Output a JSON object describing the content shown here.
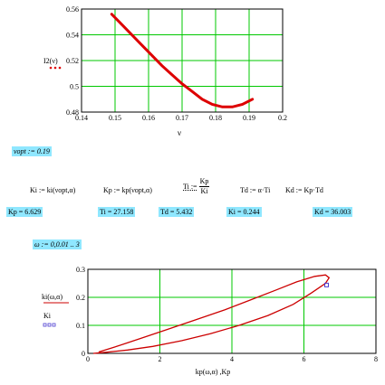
{
  "top_plot": {
    "y_axis_label": "I2(ν)",
    "x_axis_label": "ν",
    "y_ticks": [
      "0.56",
      "0.54",
      "0.52",
      "0.5",
      "0.48"
    ],
    "x_ticks": [
      "0.14",
      "0.15",
      "0.16",
      "0.17",
      "0.18",
      "0.19",
      "0.2"
    ]
  },
  "nu_opt": "νopt := 0.19",
  "definitions": {
    "ki": "Ki := ki(νopt,α)",
    "kp": "Kp := kp(νopt,α)",
    "ti_lhs": "Ti :=",
    "ti_num": "Kp",
    "ti_den": "Ki",
    "td": "Td := α·Ti",
    "kd": "Kd := Kp·Td"
  },
  "results": {
    "kp": "Kp = 6.629",
    "ti": "Ti = 27.158",
    "td": "Td = 5.432",
    "ki": "Ki = 0.244",
    "kd": "Kd = 36.003"
  },
  "omega_range": "ω := 0,0.01 .. 3",
  "bottom_plot": {
    "y_axis_label": "ki(ω,α)",
    "y_axis_label2": "Ki",
    "x_axis_label": "kp(ω,α) ,Kp",
    "y_ticks": [
      "0.3",
      "0.2",
      "0.1",
      "0"
    ],
    "x_ticks": [
      "0",
      "2",
      "4",
      "6",
      "8"
    ]
  },
  "chart_data": [
    {
      "type": "line",
      "title": "",
      "xlabel": "ν",
      "ylabel": "I2(ν)",
      "xlim": [
        0.14,
        0.2
      ],
      "ylim": [
        0.48,
        0.56
      ],
      "grid": true,
      "series": [
        {
          "x": [
            0.149,
            0.152,
            0.155,
            0.158,
            0.161,
            0.164,
            0.167,
            0.17,
            0.173,
            0.176,
            0.179,
            0.182,
            0.185,
            0.188,
            0.191
          ],
          "y": [
            0.556,
            0.548,
            0.54,
            0.532,
            0.524,
            0.516,
            0.509,
            0.502,
            0.496,
            0.49,
            0.486,
            0.484,
            0.484,
            0.486,
            0.49
          ]
        }
      ]
    },
    {
      "type": "line",
      "title": "",
      "xlabel": "kp(ω,α) ,Kp",
      "ylabel": "ki(ω,α)",
      "xlim": [
        0,
        8
      ],
      "ylim": [
        0,
        0.3
      ],
      "grid": true,
      "series": [
        {
          "x": [
            0.3,
            0.8,
            1.5,
            2.2,
            3.0,
            3.8,
            4.5,
            5.2,
            5.8,
            6.3,
            6.6,
            6.7,
            6.6,
            6.2,
            5.7,
            5.0,
            4.2,
            3.4,
            2.6,
            1.8,
            1.1,
            0.5,
            0.15
          ],
          "y": [
            0.005,
            0.025,
            0.055,
            0.085,
            0.12,
            0.155,
            0.19,
            0.225,
            0.255,
            0.275,
            0.28,
            0.27,
            0.25,
            0.215,
            0.175,
            0.135,
            0.1,
            0.07,
            0.045,
            0.025,
            0.012,
            0.004,
            0.0
          ]
        },
        {
          "name": "Ki",
          "x": [
            6.629
          ],
          "y": [
            0.244
          ]
        }
      ]
    }
  ]
}
